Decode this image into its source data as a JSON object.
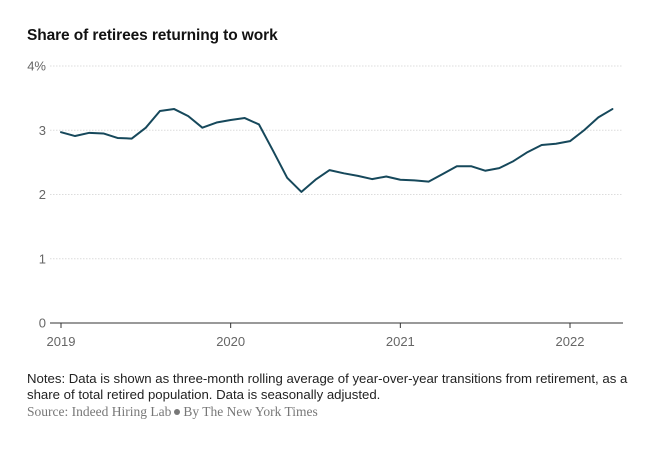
{
  "chart_data": {
    "type": "line",
    "title": "Share of retirees returning to work",
    "xlabel": "",
    "ylabel": "",
    "y_unit_suffix": "%",
    "xlim": [
      2019,
      2022.33
    ],
    "ylim": [
      0,
      4
    ],
    "yticks": [
      0,
      1,
      2,
      3,
      4
    ],
    "ytick_labels": [
      "0",
      "1",
      "2",
      "3",
      "4%"
    ],
    "xticks": [
      2019,
      2020,
      2021,
      2022
    ],
    "xtick_labels": [
      "2019",
      "2020",
      "2021",
      "2022"
    ],
    "grid": true,
    "line_color": "#16485b",
    "series": [
      {
        "x": [
          2019.0,
          2019.083,
          2019.167,
          2019.25,
          2019.333,
          2019.417,
          2019.5,
          2019.583,
          2019.667,
          2019.75,
          2019.833,
          2019.917,
          2020.0,
          2020.083,
          2020.167,
          2020.25,
          2020.333,
          2020.417,
          2020.5,
          2020.583,
          2020.667,
          2020.75,
          2020.833,
          2020.917,
          2021.0,
          2021.083,
          2021.167,
          2021.25,
          2021.333,
          2021.417,
          2021.5,
          2021.583,
          2021.667,
          2021.75,
          2021.833,
          2021.917,
          2022.0,
          2022.083,
          2022.167,
          2022.25
        ],
        "values": [
          2.97,
          2.91,
          2.96,
          2.95,
          2.88,
          2.87,
          3.04,
          3.3,
          3.33,
          3.22,
          3.04,
          3.12,
          3.16,
          3.19,
          3.09,
          2.68,
          2.26,
          2.04,
          2.23,
          2.38,
          2.33,
          2.29,
          2.24,
          2.28,
          2.23,
          2.22,
          2.2,
          2.32,
          2.44,
          2.44,
          2.37,
          2.41,
          2.52,
          2.66,
          2.77,
          2.79,
          2.83,
          3.0,
          3.2,
          3.33
        ]
      }
    ]
  },
  "notes": "Notes: Data is shown as three-month rolling average of year-over-year transitions from retirement, as a share of total retired population. Data is seasonally adjusted.",
  "source_label": "Source: Indeed Hiring Lab",
  "byline": "By The New York Times"
}
